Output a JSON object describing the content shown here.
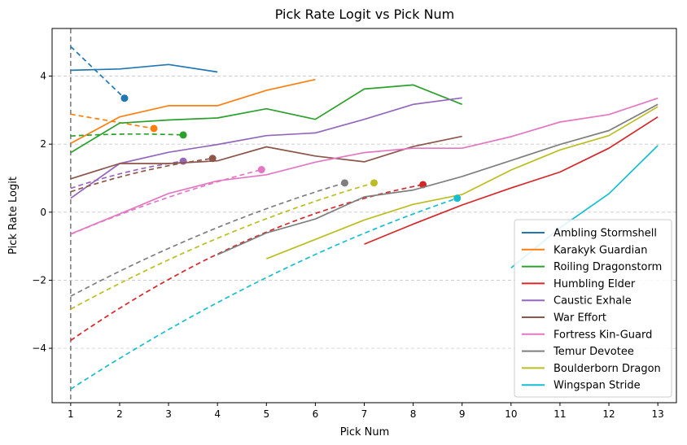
{
  "chart_data": {
    "type": "line",
    "title": "Pick Rate Logit vs Pick Num",
    "xlabel": "Pick Num",
    "ylabel": "Pick Rate Logit",
    "xlim": [
      0.62,
      13.38
    ],
    "ylim": [
      -5.6,
      5.4
    ],
    "xticks": [
      1,
      2,
      3,
      4,
      5,
      6,
      7,
      8,
      9,
      10,
      11,
      12,
      13
    ],
    "yticks": [
      -4,
      -2,
      0,
      2,
      4
    ],
    "ytick_labels": [
      "−4",
      "−2",
      "0",
      "2",
      "4"
    ],
    "grid": "y-dashed",
    "vline_x": 1,
    "legend_position": "lower-right",
    "series": [
      {
        "name": "Ambling Stormshell",
        "color": "#1f77b4",
        "x": [
          1,
          2,
          3,
          4
        ],
        "y": [
          4.17,
          4.21,
          4.34,
          4.12
        ],
        "fit": {
          "a": 4.87,
          "b": -1.5,
          "c": 0.0,
          "x_end": 2.1
        },
        "marker": {
          "x": 2.1,
          "y": 3.35
        }
      },
      {
        "name": "Karakyk Guardian",
        "color": "#ff7f0e",
        "x": [
          1,
          2,
          3,
          4,
          5,
          6
        ],
        "y": [
          2.02,
          2.8,
          3.13,
          3.13,
          3.58,
          3.9
        ],
        "fit": {
          "a": 2.88,
          "b": -0.25,
          "c": 0.0,
          "x_end": 2.7
        },
        "marker": {
          "x": 2.7,
          "y": 2.46
        }
      },
      {
        "name": "Roiling Dragonstorm",
        "color": "#2ca02c",
        "x": [
          1,
          2,
          3,
          4,
          5,
          6,
          7,
          8,
          9
        ],
        "y": [
          1.75,
          2.62,
          2.71,
          2.77,
          3.04,
          2.73,
          3.62,
          3.74,
          3.17
        ],
        "fit": {
          "a": 2.24,
          "b": 0.09,
          "c": -0.03,
          "x_end": 3.3
        },
        "marker": {
          "x": 3.3,
          "y": 2.27
        }
      },
      {
        "name": "Humbling Elder",
        "color": "#d62728",
        "x": [
          7,
          8,
          9,
          10,
          11,
          12,
          13
        ],
        "y": [
          -0.94,
          -0.35,
          0.21,
          0.71,
          1.18,
          1.88,
          2.8
        ],
        "fit": {
          "a": -3.77,
          "b": 1.2,
          "c": -0.05,
          "x_end": 8.2
        },
        "marker": {
          "x": 8.2,
          "y": 0.81
        }
      },
      {
        "name": "Caustic Exhale",
        "color": "#9467bd",
        "x": [
          1,
          2,
          3,
          4,
          5,
          6,
          7,
          8,
          9
        ],
        "y": [
          0.41,
          1.43,
          1.76,
          1.99,
          2.25,
          2.33,
          2.73,
          3.17,
          3.36
        ],
        "fit": {
          "a": 0.7,
          "b": 0.5,
          "c": -0.06,
          "x_end": 3.3
        },
        "marker": {
          "x": 3.3,
          "y": 1.5
        }
      },
      {
        "name": "War Effort",
        "color": "#8c564b",
        "x": [
          1,
          2,
          3,
          4,
          5,
          6,
          7,
          8,
          9
        ],
        "y": [
          0.98,
          1.43,
          1.43,
          1.51,
          1.92,
          1.65,
          1.48,
          1.93,
          2.23
        ],
        "fit": {
          "a": 0.6,
          "b": 0.45,
          "c": -0.05,
          "x_end": 3.9
        },
        "marker": {
          "x": 3.9,
          "y": 1.58
        }
      },
      {
        "name": "Fortress Kin-Guard",
        "color": "#e377c2",
        "x": [
          1,
          2,
          3,
          4,
          5,
          6,
          7,
          8,
          9,
          10,
          11,
          12,
          13
        ],
        "y": [
          -0.64,
          -0.05,
          0.55,
          0.92,
          1.1,
          1.47,
          1.75,
          1.88,
          1.88,
          2.22,
          2.65,
          2.87,
          3.35
        ],
        "fit": {
          "a": -0.65,
          "b": 0.63,
          "c": -0.03,
          "x_end": 4.9
        },
        "marker": {
          "x": 4.9,
          "y": 1.25
        }
      },
      {
        "name": "Temur Devotee",
        "color": "#7f7f7f",
        "x": [
          4,
          5,
          6,
          7,
          8,
          9,
          10,
          11,
          12,
          13
        ],
        "y": [
          -1.25,
          -0.61,
          -0.2,
          0.45,
          0.65,
          1.05,
          1.52,
          1.99,
          2.4,
          3.17
        ],
        "fit": {
          "a": -2.47,
          "b": 0.87,
          "c": -0.03,
          "x_end": 6.6
        },
        "marker": {
          "x": 6.6,
          "y": 0.86
        }
      },
      {
        "name": "Boulderborn Dragon",
        "color": "#bcbd22",
        "x": [
          5,
          6,
          7,
          8,
          9,
          10,
          11,
          12,
          13
        ],
        "y": [
          -1.37,
          -0.8,
          -0.23,
          0.23,
          0.52,
          1.24,
          1.83,
          2.25,
          3.1
        ],
        "fit": {
          "a": -2.85,
          "b": 0.83,
          "c": -0.03,
          "x_end": 7.2
        },
        "marker": {
          "x": 7.2,
          "y": 0.86
        }
      },
      {
        "name": "Wingspan Stride",
        "color": "#17becf",
        "x": [
          10,
          11,
          12,
          13
        ],
        "y": [
          -1.64,
          -0.46,
          0.54,
          1.96
        ],
        "fit": {
          "a": -5.2,
          "b": 1.02,
          "c": -0.028,
          "x_end": 8.9
        },
        "marker": {
          "x": 8.9,
          "y": 0.41
        }
      }
    ]
  }
}
